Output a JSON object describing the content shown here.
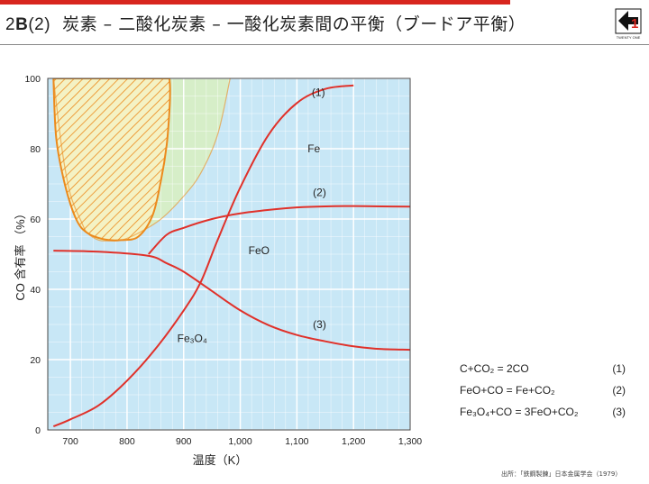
{
  "header": {
    "prefix_num": "2",
    "prefix_letter": "B",
    "prefix_paren": "(2)",
    "title": "炭素 – 二酸化炭素 – 一酸化炭素間の平衡（ブードア平衡）",
    "logo_text": "TWENTY ONE"
  },
  "colors": {
    "accent": "#d8261e",
    "fe_region": "#c8e7f6",
    "carbon_region": "#d6eec8",
    "hatch": "#ec8a1c",
    "curve": "#e0312a"
  },
  "chart_data": {
    "type": "line",
    "xlabel": "温度（K）",
    "ylabel": "CO 含有率 （%）",
    "xlim": [
      660,
      1300
    ],
    "ylim": [
      0,
      100
    ],
    "xticks": [
      700,
      800,
      900,
      1000,
      1100,
      1200,
      1300
    ],
    "xtick_labels": [
      "700",
      "800",
      "900",
      "1,000",
      "1,100",
      "1,200",
      "1,300"
    ],
    "yticks": [
      0,
      20,
      40,
      60,
      80,
      100
    ],
    "ytick_labels": [
      "0",
      "20",
      "40",
      "60",
      "80",
      "100"
    ],
    "grid": true,
    "series": [
      {
        "name": "(1)",
        "x": [
          670,
          700,
          750,
          800,
          850,
          900,
          930,
          960,
          1000,
          1050,
          1100,
          1150,
          1200
        ],
        "y": [
          1,
          3,
          7,
          14,
          23,
          34,
          42,
          54,
          69,
          84,
          93,
          97,
          98
        ]
      },
      {
        "name": "(2)",
        "x": [
          838,
          870,
          900,
          950,
          1000,
          1050,
          1100,
          1150,
          1200,
          1250,
          1300
        ],
        "y": [
          50,
          55.5,
          57.5,
          60,
          61.6,
          62.6,
          63.3,
          63.6,
          63.7,
          63.6,
          63.5
        ]
      },
      {
        "name": "(3)",
        "x": [
          670,
          750,
          838,
          870,
          900,
          950,
          1000,
          1050,
          1100,
          1150,
          1200,
          1250,
          1300
        ],
        "y": [
          51,
          50.7,
          49.5,
          47.4,
          45,
          39.5,
          34,
          29.8,
          27,
          25.2,
          23.8,
          23,
          22.8
        ]
      }
    ],
    "carbon_boundary": {
      "x": [
        982,
        960,
        930,
        900,
        860,
        820,
        790,
        770,
        750,
        730,
        720,
        700,
        685,
        670
      ],
      "y": [
        100,
        84,
        73,
        66.5,
        60,
        56,
        54,
        53.8,
        54,
        56,
        59,
        67,
        80,
        100
      ]
    },
    "hatched_region": {
      "x": [
        670,
        675,
        690,
        710,
        730,
        760,
        790,
        820,
        845,
        860,
        870,
        875,
        876,
        875
      ],
      "y": [
        100,
        83,
        70,
        60,
        56,
        54.2,
        54,
        55,
        61,
        71,
        81,
        91,
        97,
        100
      ]
    },
    "annotations": [
      {
        "text": "(1)",
        "x": 1138,
        "y": 95
      },
      {
        "text": "Fe",
        "x": 1130,
        "y": 79
      },
      {
        "text": "(2)",
        "x": 1140,
        "y": 66.5
      },
      {
        "text": "FeO",
        "x": 1033,
        "y": 50
      },
      {
        "text": "(3)",
        "x": 1140,
        "y": 29
      },
      {
        "text": "Fe₃O₄",
        "x": 915,
        "y": 25
      }
    ]
  },
  "equations": [
    {
      "formula": "C+CO₂ = 2CO",
      "num": "(1)"
    },
    {
      "formula": "FeO+CO = Fe+CO₂",
      "num": "(2)"
    },
    {
      "formula": "Fe₃O₄+CO = 3FeO+CO₂",
      "num": "(3)"
    }
  ],
  "source": "出所：「鉄鋼製錬」日本金属学会（1979）"
}
